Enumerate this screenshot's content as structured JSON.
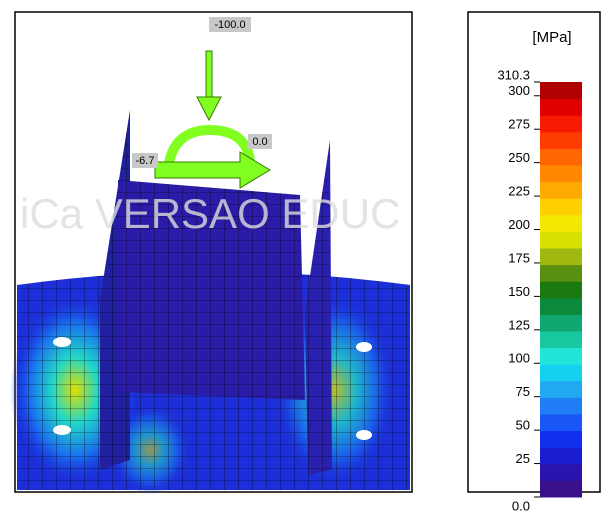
{
  "model_view": {
    "load_labels": [
      "-100.0",
      "-6.7",
      "0.0"
    ],
    "watermark": "iCa VERSAO EDUC"
  },
  "legend": {
    "unit": "[MPa]",
    "ylim": [
      0,
      310.3
    ],
    "yticks": [
      {
        "value": 0,
        "label": "0.0"
      },
      25,
      50,
      75,
      100,
      125,
      150,
      175,
      200,
      225,
      250,
      275,
      300,
      310.3
    ],
    "colors": [
      "#3a0f8a",
      "#2a14b0",
      "#1a1ed0",
      "#1030ee",
      "#1a55f5",
      "#1f7df5",
      "#20a8f0",
      "#15d0f0",
      "#22e5d8",
      "#18c8a0",
      "#10a870",
      "#0a8a3a",
      "#1a7a10",
      "#5a9010",
      "#a0b810",
      "#d8e000",
      "#f5e800",
      "#ffd000",
      "#ffaa00",
      "#ff8800",
      "#ff6600",
      "#ff3c00",
      "#f51a00",
      "#e00000",
      "#b00000"
    ]
  }
}
